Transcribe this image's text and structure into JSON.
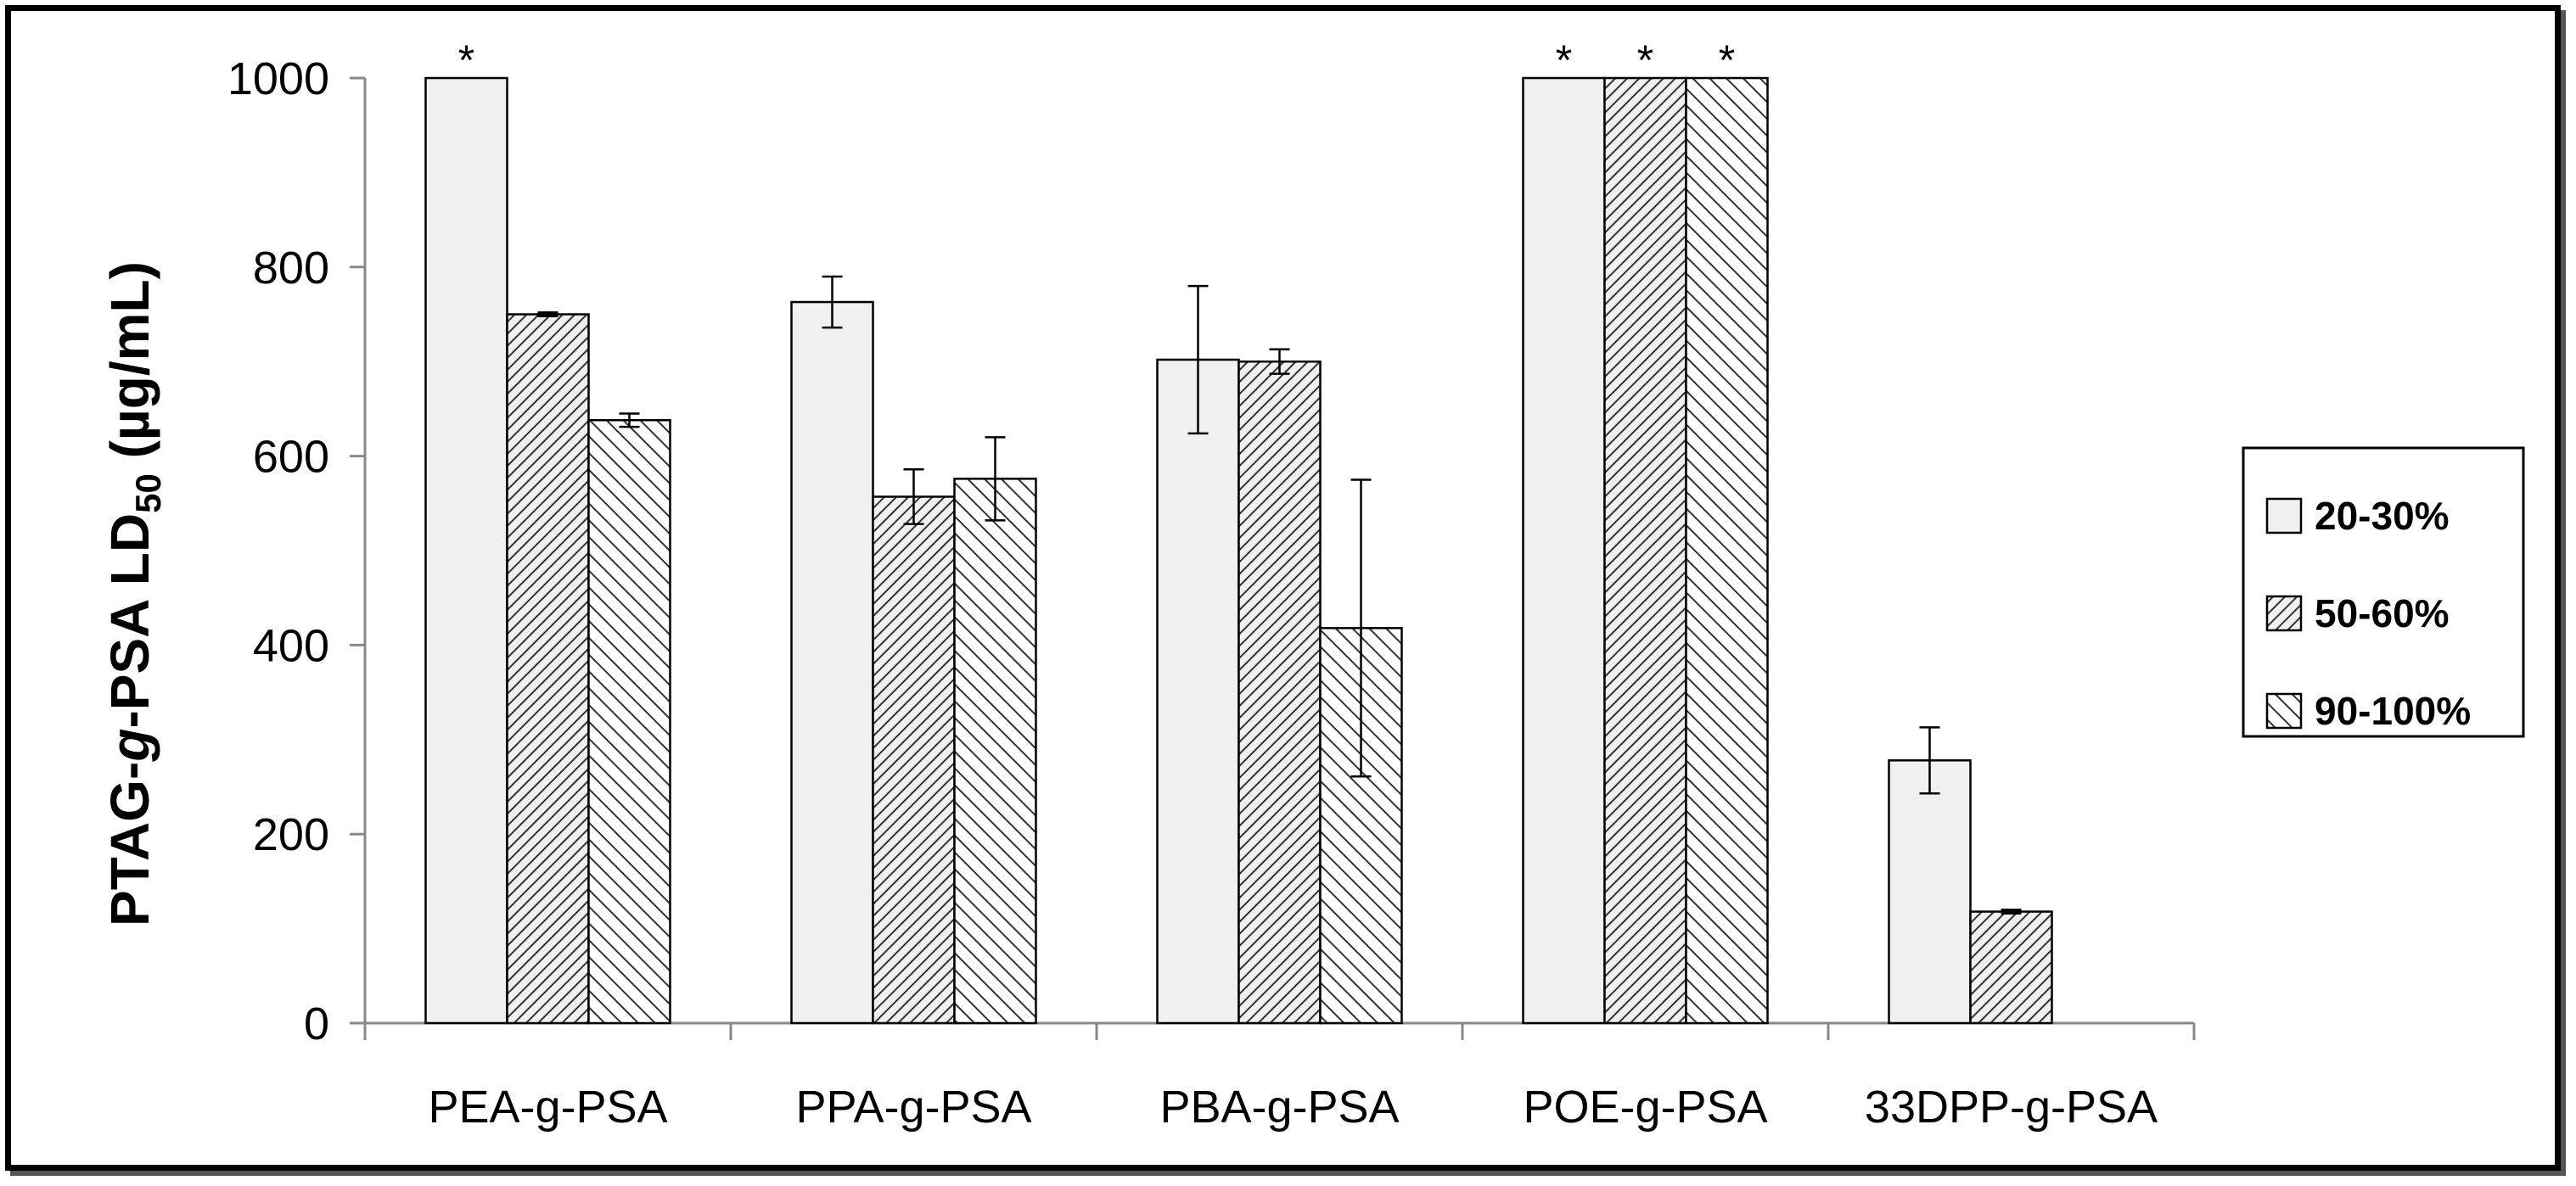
{
  "chart_data": {
    "type": "bar",
    "title": "",
    "xlabel": "",
    "ylabel": {
      "parts": [
        "PTAG-",
        "g",
        "-PSA LD",
        "50",
        " (µg/mL)"
      ]
    },
    "ylim": [
      0,
      1000
    ],
    "yticks": [
      0,
      200,
      400,
      600,
      800,
      1000
    ],
    "categories": [
      "PEA-g-PSA",
      "PPA-g-PSA",
      "PBA-g-PSA",
      "POE-g-PSA",
      "33DPP-g-PSA"
    ],
    "series": [
      {
        "name": "20-30%",
        "pattern": "solid",
        "values": [
          1000,
          763,
          702,
          1000,
          278
        ],
        "errors": [
          0,
          27,
          78,
          0,
          35
        ],
        "flags": [
          "*",
          "",
          "",
          "*",
          ""
        ]
      },
      {
        "name": "50-60%",
        "pattern": "dense-hatch",
        "values": [
          750,
          557,
          700,
          1000,
          118
        ],
        "errors": [
          2,
          29,
          13,
          0,
          2
        ],
        "flags": [
          "",
          "",
          "",
          "*",
          ""
        ]
      },
      {
        "name": "90-100%",
        "pattern": "sparse-hatch",
        "values": [
          638,
          576,
          418,
          1000,
          null
        ],
        "errors": [
          7,
          44,
          157,
          0,
          0
        ],
        "flags": [
          "",
          "",
          "",
          "*",
          ""
        ]
      }
    ],
    "legend": {
      "position": "right"
    },
    "grid": false,
    "colors": {
      "bar_fill": "#f0f0f0",
      "stroke": "#000000"
    }
  }
}
